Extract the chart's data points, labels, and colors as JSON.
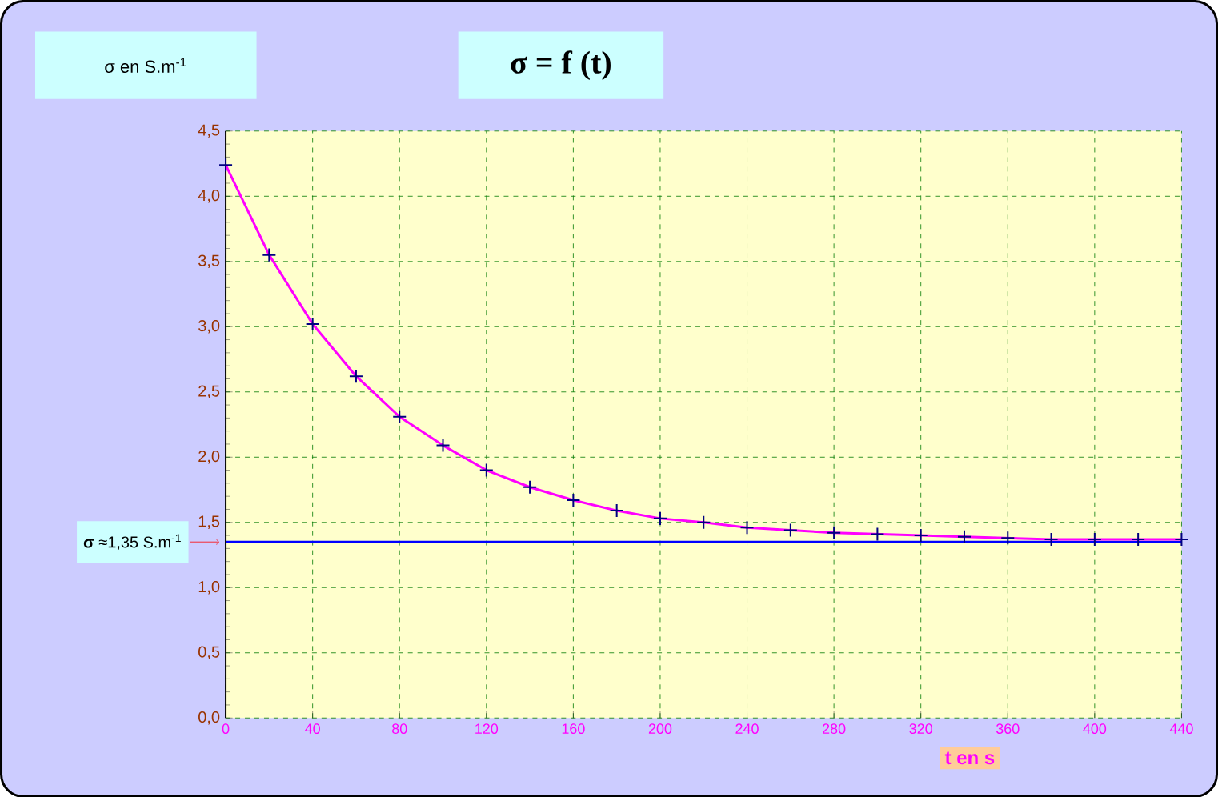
{
  "chart_data": {
    "type": "line",
    "title": "σ = f (t)",
    "ylabel": "σ en S.m$^{-1}$",
    "xlabel": "t en s",
    "x": [
      0,
      20,
      40,
      60,
      80,
      100,
      120,
      140,
      160,
      180,
      200,
      220,
      240,
      260,
      280,
      300,
      320,
      340,
      360,
      380,
      400,
      420,
      440
    ],
    "series": [
      {
        "color": "#ff00ff",
        "values": [
          4.24,
          3.55,
          3.02,
          2.62,
          2.31,
          2.09,
          1.9,
          1.77,
          1.67,
          1.59,
          1.53,
          1.5,
          1.46,
          1.44,
          1.42,
          1.41,
          1.4,
          1.39,
          1.38,
          1.37,
          1.37,
          1.37,
          1.37
        ]
      }
    ],
    "xlim": [
      0,
      440
    ],
    "ylim": [
      0,
      4.5
    ],
    "xticks": [
      0,
      40,
      80,
      120,
      160,
      200,
      240,
      280,
      320,
      360,
      400,
      440
    ],
    "yticks": [
      {
        "value": 0,
        "label": "0,0"
      },
      {
        "value": 0.5,
        "label": "0,5"
      },
      {
        "value": 1,
        "label": "1,0"
      },
      {
        "value": 1.5,
        "label": "1,5"
      },
      {
        "value": 2,
        "label": "2,0"
      },
      {
        "value": 2.5,
        "label": "2,5"
      },
      {
        "value": 3,
        "label": "3,0"
      },
      {
        "value": 3.5,
        "label": "3,5"
      },
      {
        "value": 4,
        "label": "4,0"
      },
      {
        "value": 4.5,
        "label": "4,5"
      }
    ],
    "ref_lines": [
      {
        "axis": "y",
        "value": 1.35,
        "label": "**σ** ≈1,35 S.m$^{-1}$",
        "color": "#0000ff"
      }
    ],
    "grid": true,
    "marker": "cross",
    "line_style": "solid"
  }
}
